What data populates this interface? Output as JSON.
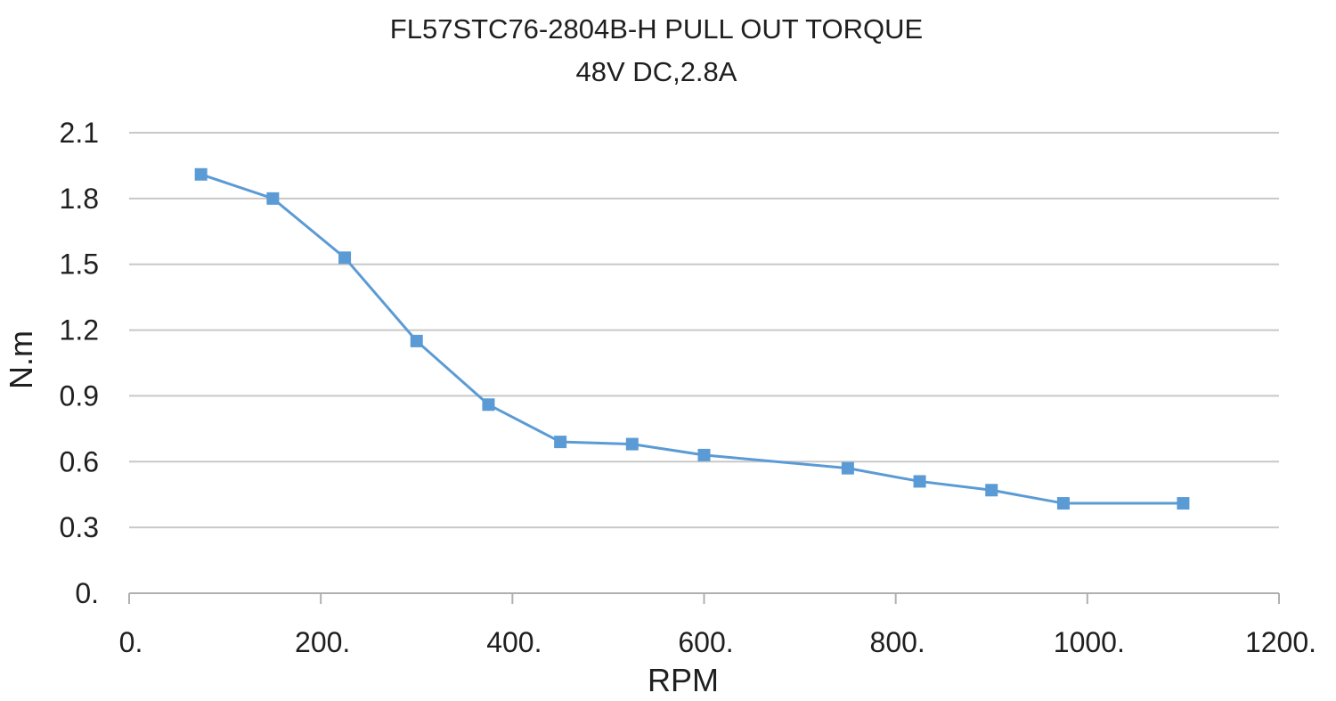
{
  "chart_data": {
    "type": "line",
    "title": "FL57STC76-2804B-H  PULL   OUT   TORQUE",
    "subtitle": "48V DC,2.8A",
    "xlabel": "RPM",
    "ylabel": "N.m",
    "xlim": [
      0,
      1200
    ],
    "ylim": [
      0,
      2.1
    ],
    "x_ticks": [
      "0.",
      "200.",
      "400.",
      "600.",
      "800.",
      "1000.",
      "1200."
    ],
    "x_tick_values": [
      0,
      200,
      400,
      600,
      800,
      1000,
      1200
    ],
    "y_ticks": [
      "0.",
      "0.3",
      "0.6",
      "0.9",
      "1.2",
      "1.5",
      "1.8",
      "2.1"
    ],
    "y_tick_values": [
      0,
      0.3,
      0.6,
      0.9,
      1.2,
      1.5,
      1.8,
      2.1
    ],
    "grid": "horizontal",
    "series": [
      {
        "color": "#5b9bd5",
        "marker": "square",
        "x": [
          75,
          150,
          225,
          300,
          375,
          450,
          525,
          600,
          750,
          825,
          900,
          975,
          1100
        ],
        "y": [
          1.91,
          1.8,
          1.53,
          1.15,
          0.86,
          0.69,
          0.68,
          0.63,
          0.57,
          0.51,
          0.47,
          0.41,
          0.41
        ]
      }
    ]
  }
}
